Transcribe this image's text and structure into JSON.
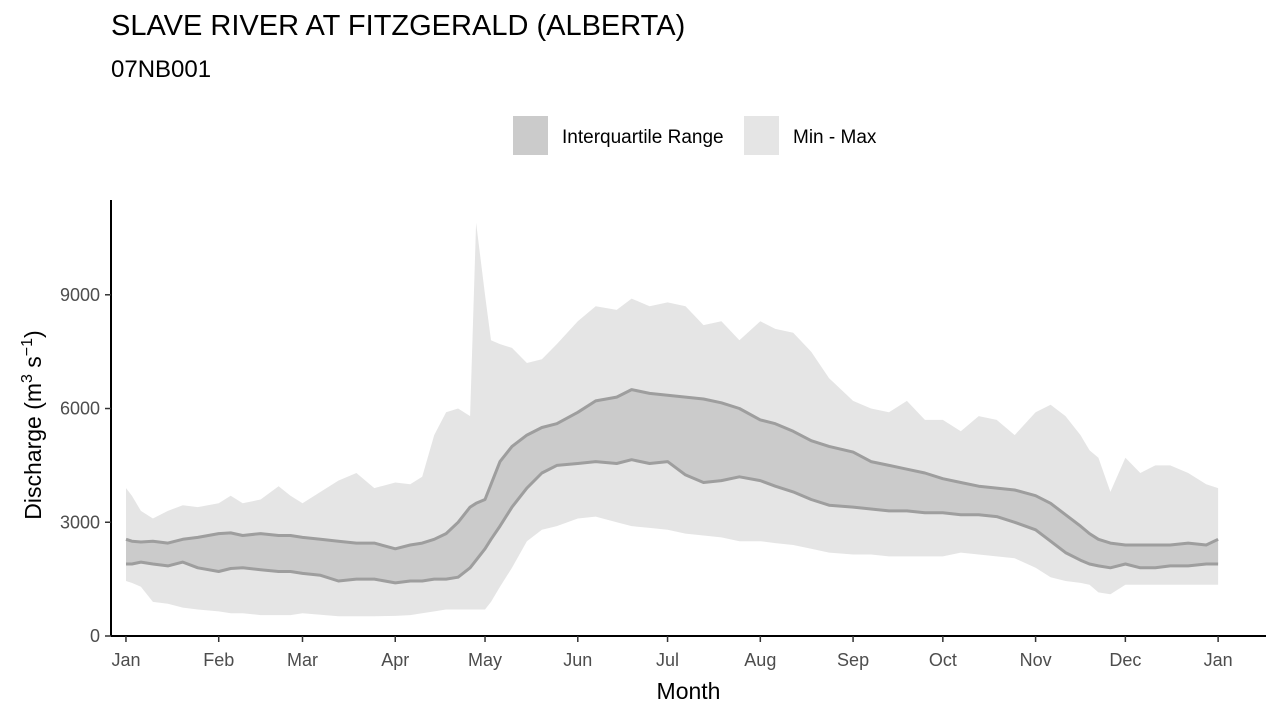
{
  "chart": {
    "title": "SLAVE RIVER AT FITZGERALD (ALBERTA)",
    "subtitle": "07NB001"
  },
  "chart_data": {
    "type": "area",
    "title": "SLAVE RIVER AT FITZGERALD (ALBERTA)",
    "subtitle": "07NB001",
    "xlabel": "Month",
    "ylabel": "Discharge (m³ s⁻¹)",
    "ylabel_parts": [
      "Discharge (m",
      "3",
      " s",
      "−1",
      ")"
    ],
    "x_ticks": [
      "Jan",
      "Feb",
      "Mar",
      "Apr",
      "May",
      "Jun",
      "Jul",
      "Aug",
      "Sep",
      "Oct",
      "Nov",
      "Dec",
      "Jan"
    ],
    "x_tick_positions": [
      1,
      32,
      60,
      91,
      121,
      152,
      182,
      213,
      244,
      274,
      305,
      335,
      366
    ],
    "y_ticks": [
      0,
      3000,
      6000,
      9000
    ],
    "xlim": [
      -4,
      382
    ],
    "ylim": [
      0,
      11500
    ],
    "grid": false,
    "legend_position": "top",
    "legend": [
      {
        "label": "Interquartile Range",
        "color": "#cbcbcb"
      },
      {
        "label": "Min - Max",
        "color": "#e5e5e5"
      }
    ],
    "colors": {
      "iqr_fill": "#cbcbcb",
      "iqr_line": "#9e9e9e",
      "minmax_fill": "#e5e5e5",
      "axis": "#000000",
      "tick_text": "#4d4d4d"
    },
    "x": [
      1,
      3,
      6,
      10,
      15,
      20,
      25,
      32,
      36,
      40,
      46,
      52,
      56,
      60,
      66,
      72,
      78,
      84,
      91,
      96,
      100,
      104,
      108,
      112,
      116,
      118,
      121,
      123,
      126,
      130,
      135,
      140,
      145,
      152,
      158,
      165,
      170,
      176,
      182,
      188,
      194,
      200,
      206,
      213,
      218,
      224,
      230,
      236,
      244,
      250,
      256,
      262,
      268,
      274,
      280,
      286,
      292,
      298,
      305,
      310,
      315,
      320,
      323,
      326,
      330,
      335,
      340,
      345,
      350,
      356,
      362,
      366
    ],
    "series": [
      {
        "name": "Min - Max",
        "role": "band",
        "upper": [
          3900,
          3700,
          3300,
          3100,
          3300,
          3450,
          3400,
          3500,
          3700,
          3500,
          3600,
          3950,
          3700,
          3500,
          3800,
          4100,
          4300,
          3900,
          4050,
          4000,
          4200,
          5300,
          5900,
          6000,
          5800,
          10900,
          9000,
          7800,
          7700,
          7600,
          7200,
          7300,
          7700,
          8300,
          8700,
          8600,
          8900,
          8700,
          8800,
          8700,
          8200,
          8300,
          7800,
          8300,
          8100,
          8000,
          7500,
          6800,
          6200,
          6000,
          5900,
          6200,
          5700,
          5700,
          5400,
          5800,
          5700,
          5300,
          5900,
          6100,
          5800,
          5300,
          4900,
          4700,
          3800,
          4700,
          4300,
          4500,
          4500,
          4300,
          4000,
          3900
        ],
        "lower": [
          1450,
          1400,
          1300,
          900,
          850,
          750,
          700,
          650,
          600,
          600,
          550,
          550,
          550,
          600,
          560,
          520,
          520,
          520,
          530,
          550,
          600,
          650,
          700,
          700,
          700,
          700,
          700,
          900,
          1300,
          1800,
          2500,
          2800,
          2900,
          3100,
          3150,
          3000,
          2900,
          2850,
          2800,
          2700,
          2650,
          2600,
          2500,
          2500,
          2450,
          2400,
          2300,
          2200,
          2150,
          2150,
          2100,
          2100,
          2100,
          2100,
          2200,
          2150,
          2100,
          2050,
          1800,
          1550,
          1450,
          1400,
          1350,
          1150,
          1100,
          1350,
          1350,
          1350,
          1350,
          1350,
          1350,
          1350
        ]
      },
      {
        "name": "Interquartile Range",
        "role": "band",
        "upper": [
          2550,
          2500,
          2480,
          2500,
          2450,
          2550,
          2600,
          2700,
          2720,
          2650,
          2700,
          2650,
          2650,
          2600,
          2550,
          2500,
          2450,
          2450,
          2300,
          2400,
          2450,
          2550,
          2700,
          3000,
          3400,
          3500,
          3600,
          4000,
          4600,
          5000,
          5300,
          5500,
          5600,
          5900,
          6200,
          6300,
          6500,
          6400,
          6350,
          6300,
          6250,
          6150,
          6000,
          5700,
          5600,
          5400,
          5150,
          5000,
          4850,
          4600,
          4500,
          4400,
          4300,
          4150,
          4050,
          3950,
          3900,
          3850,
          3700,
          3500,
          3200,
          2900,
          2700,
          2550,
          2450,
          2400,
          2400,
          2400,
          2400,
          2450,
          2400,
          2550
        ],
        "lower": [
          1900,
          1900,
          1950,
          1900,
          1850,
          1950,
          1800,
          1700,
          1780,
          1800,
          1750,
          1700,
          1700,
          1650,
          1600,
          1450,
          1500,
          1500,
          1400,
          1450,
          1450,
          1500,
          1500,
          1550,
          1800,
          2000,
          2300,
          2550,
          2900,
          3400,
          3900,
          4300,
          4500,
          4550,
          4600,
          4550,
          4650,
          4550,
          4600,
          4250,
          4050,
          4100,
          4200,
          4100,
          3950,
          3800,
          3600,
          3450,
          3400,
          3350,
          3300,
          3300,
          3250,
          3250,
          3200,
          3200,
          3150,
          3000,
          2800,
          2500,
          2200,
          2000,
          1900,
          1850,
          1800,
          1900,
          1800,
          1800,
          1850,
          1850,
          1900,
          1900
        ]
      }
    ]
  }
}
